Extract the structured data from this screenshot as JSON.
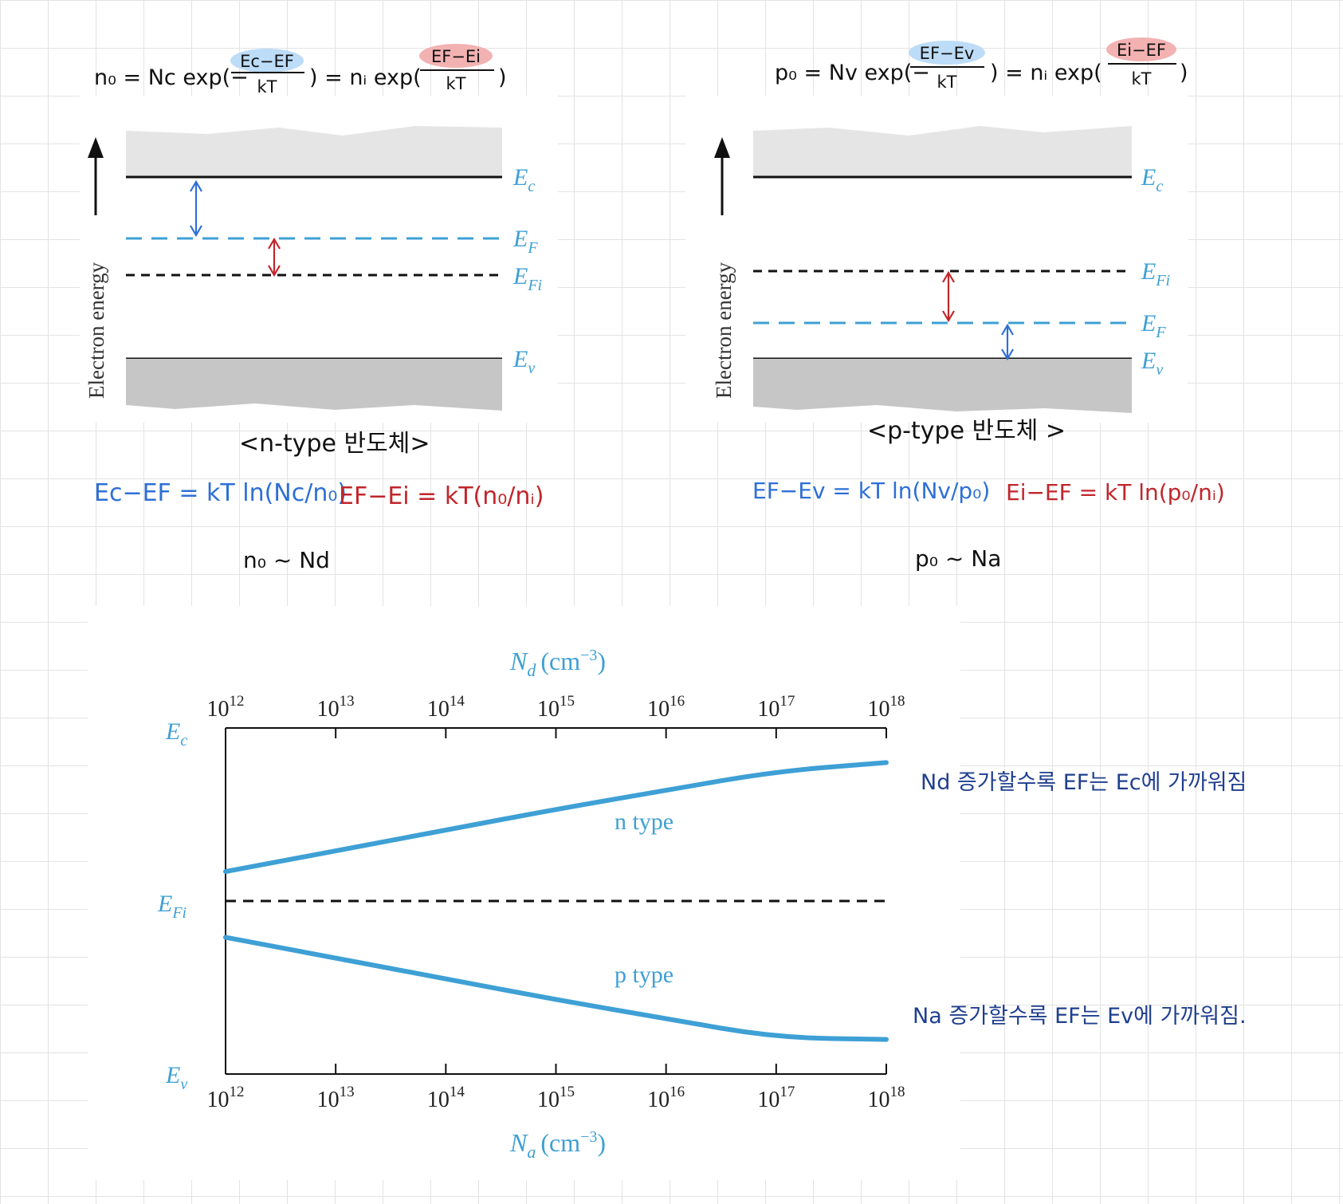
{
  "colors": {
    "accent": "#3ea0d5",
    "hand_blue": "#2e6fd6",
    "hand_red": "#c0262b",
    "ink": "#111111",
    "hl_blue": "#bcdcf7",
    "hl_red": "#f3b2b2"
  },
  "n_panel": {
    "formula": {
      "lhs": "n₀ = Nc exp(−",
      "num1": "Ec−EF",
      "den1": "kT",
      "mid": ") = nᵢ exp(",
      "num2": "EF−Ei",
      "den2": "kT",
      "end": ")"
    },
    "ylabel": "Electron energy",
    "labels": {
      "ec": "E",
      "ec_sub": "c",
      "ef": "E",
      "ef_sub": "F",
      "efi": "E",
      "efi_sub": "Fi",
      "ev": "E",
      "ev_sub": "v"
    },
    "caption": "<n-type 반도체>",
    "eq_blue": "Ec−EF = kT ln(Nc/n₀)",
    "eq_red": "EF−Ei = kT(n₀/nᵢ)",
    "note": "n₀ ~ Nd"
  },
  "p_panel": {
    "formula": {
      "lhs": "p₀ = Nv exp(−",
      "num1": "EF−Ev",
      "den1": "kT",
      "mid": ") = nᵢ exp(",
      "num2": "Ei−EF",
      "den2": "kT",
      "end": ")"
    },
    "ylabel": "Electron energy",
    "labels": {
      "ec": "E",
      "ec_sub": "c",
      "efi": "E",
      "efi_sub": "Fi",
      "ef": "E",
      "ef_sub": "F",
      "ev": "E",
      "ev_sub": "v"
    },
    "caption": "<p-type 반도체 >",
    "eq_blue": "EF−Ev = kT ln(Nv/p₀)",
    "eq_red": "Ei−EF = kT ln(p₀/nᵢ)",
    "note": "p₀ ~ Na"
  },
  "chart_data": {
    "type": "line",
    "title": "",
    "x_top_label": "N",
    "x_top_label_sub": "d",
    "x_top_unit": "(cm",
    "x_top_unit_sup": "−3",
    "x_top_unit_end": ")",
    "x_bottom_label": "N",
    "x_bottom_label_sub": "a",
    "x_bottom_unit": "(cm",
    "x_bottom_unit_sup": "−3",
    "x_bottom_unit_end": ")",
    "x_scale": "log",
    "xlim": [
      1000000000000.0,
      1e+18
    ],
    "ticks": [
      {
        "base": "10",
        "exp": "12"
      },
      {
        "base": "10",
        "exp": "13"
      },
      {
        "base": "10",
        "exp": "14"
      },
      {
        "base": "10",
        "exp": "15"
      },
      {
        "base": "10",
        "exp": "16"
      },
      {
        "base": "10",
        "exp": "17"
      },
      {
        "base": "10",
        "exp": "18"
      }
    ],
    "y_labels": {
      "ec": "E",
      "ec_sub": "c",
      "efi": "E",
      "efi_sub": "Fi",
      "ev": "E",
      "ev_sub": "v"
    },
    "ylim": [
      -1,
      1
    ],
    "series": [
      {
        "name": "n type",
        "x": [
          1000000000000.0,
          10000000000000.0,
          100000000000000.0,
          1000000000000000.0,
          1e+16,
          1e+17,
          1e+18
        ],
        "y": [
          0.17,
          0.29,
          0.41,
          0.53,
          0.64,
          0.75,
          0.8
        ]
      },
      {
        "name": "p type",
        "x": [
          1000000000000.0,
          10000000000000.0,
          100000000000000.0,
          1000000000000000.0,
          1e+16,
          1e+17,
          1e+18
        ],
        "y": [
          -0.21,
          -0.33,
          -0.45,
          -0.57,
          -0.68,
          -0.79,
          -0.8
        ]
      }
    ],
    "reference_line": {
      "y": 0,
      "style": "dashed"
    },
    "annotations": [
      "Nd 증가할수록 EF는 Ec에 가까워짐",
      "Na 증가할수록 EF는 Ev에 가까워짐."
    ]
  }
}
